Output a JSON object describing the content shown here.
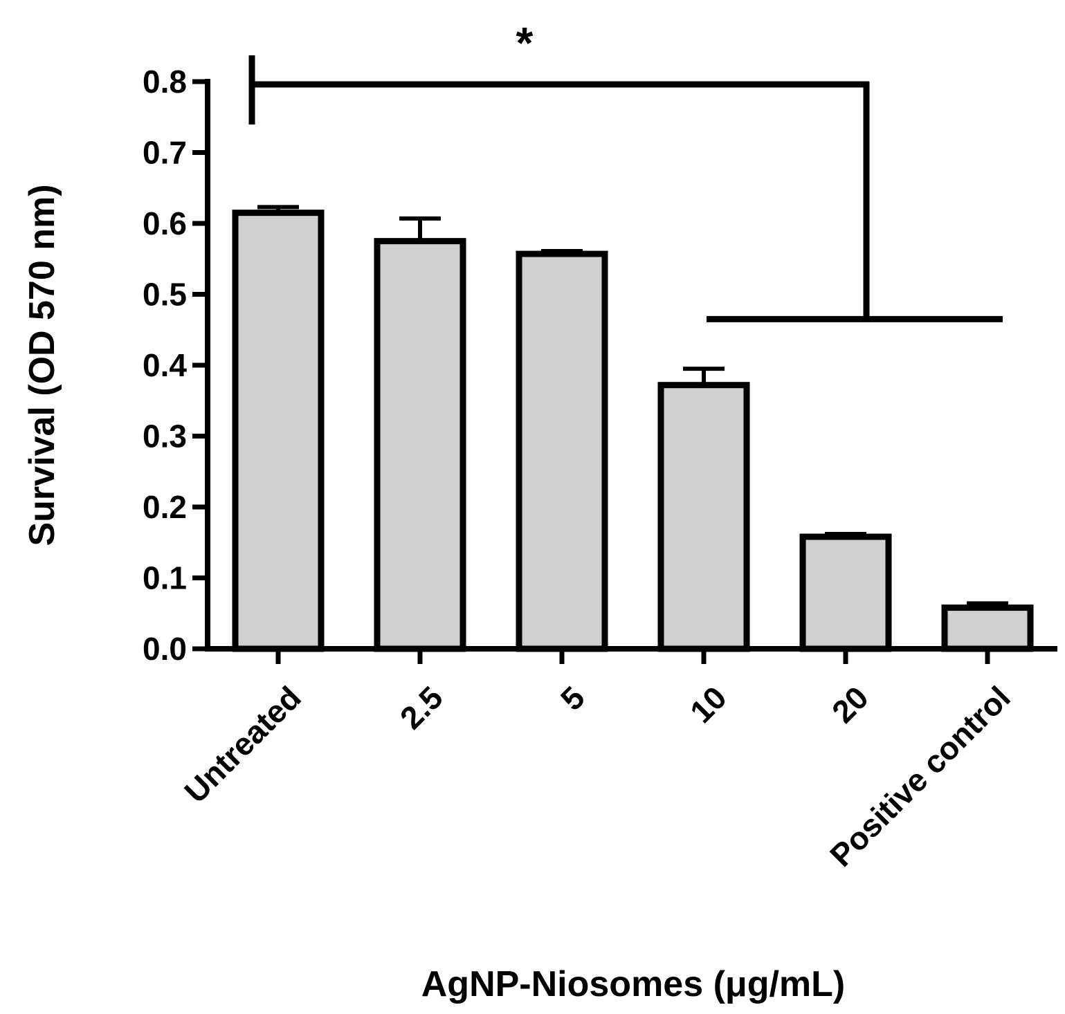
{
  "chart_data": {
    "type": "bar",
    "categories": [
      "Untreated",
      "2.5",
      "5",
      "10",
      "20",
      "Positive control"
    ],
    "values": [
      0.615,
      0.575,
      0.557,
      0.372,
      0.158,
      0.058
    ],
    "errors": [
      0.008,
      0.032,
      0.004,
      0.023,
      0.004,
      0.006
    ],
    "xlabel": "AgNP-Niosomes (μg/mL)",
    "ylabel": "Survival (OD 570 nm)",
    "ylim": [
      0.0,
      0.8
    ],
    "yticks": [
      0.0,
      0.1,
      0.2,
      0.3,
      0.4,
      0.5,
      0.6,
      0.7,
      0.8
    ],
    "ytick_labels": [
      "0.0",
      "0.1",
      "0.2",
      "0.3",
      "0.4",
      "0.5",
      "0.6",
      "0.7",
      "0.8"
    ],
    "bar_color": "#d0d0d0",
    "edge_color": "#000000",
    "grid": false,
    "legend": "none",
    "annotations": [
      {
        "text": "*",
        "type": "significance-bracket",
        "from_category": "Untreated",
        "to_categories": [
          "10",
          "20",
          "Positive control"
        ],
        "level": 0.8,
        "lower_level": 0.465
      }
    ]
  }
}
